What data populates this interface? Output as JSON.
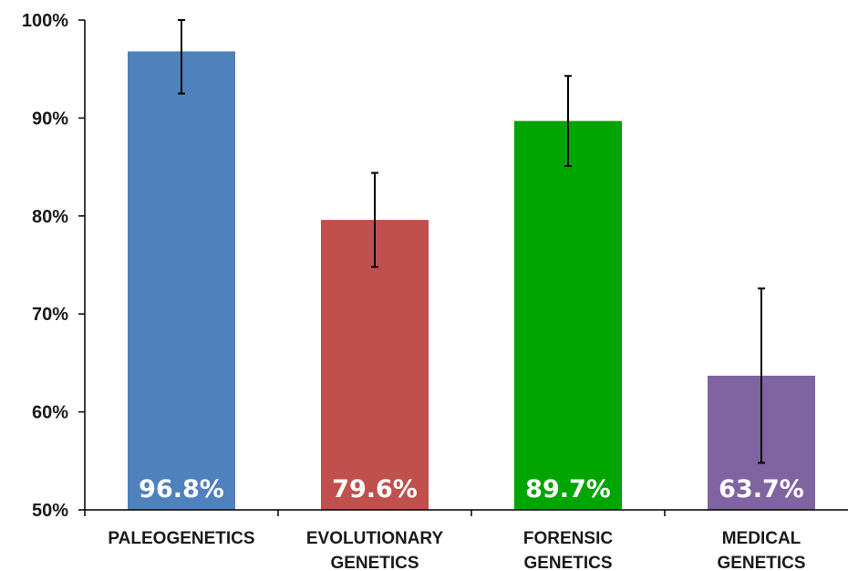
{
  "chart_data": {
    "type": "bar",
    "categories": [
      [
        "PALEOGENETICS"
      ],
      [
        "EVOLUTIONARY",
        "GENETICS"
      ],
      [
        "FORENSIC",
        "GENETICS"
      ],
      [
        "MEDICAL",
        "GENETICS"
      ]
    ],
    "values": [
      96.8,
      79.6,
      89.7,
      63.7
    ],
    "data_labels": [
      "96.8%",
      "79.6%",
      "89.7%",
      "63.7%"
    ],
    "error_bars": [
      [
        92.5,
        100.0
      ],
      [
        74.8,
        84.4
      ],
      [
        85.1,
        94.3
      ],
      [
        54.8,
        72.6
      ]
    ],
    "colors": [
      "#4f81bd",
      "#c0504d",
      "#00a500",
      "#8064a2"
    ],
    "ylim": [
      50,
      100
    ],
    "yticks": [
      50,
      60,
      70,
      80,
      90,
      100
    ],
    "ytick_labels": [
      "50%",
      "60%",
      "70%",
      "80%",
      "90%",
      "100%"
    ],
    "title": "",
    "xlabel": "",
    "ylabel": "",
    "grid": false,
    "legend": "none"
  }
}
